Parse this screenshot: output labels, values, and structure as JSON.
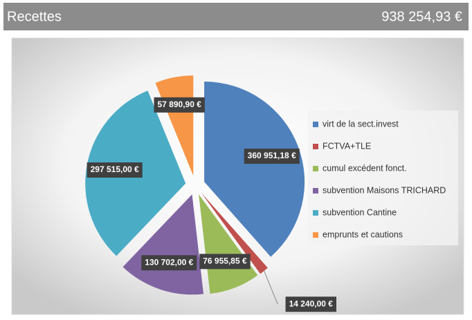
{
  "header": {
    "title": "Recettes",
    "total": "938 254,93 €"
  },
  "chart_data": {
    "type": "pie",
    "categories": [
      "virt de la sect.invest",
      "FCTVA+TLE",
      "cumul excédent fonct.",
      "subvention Maisons TRICHARD",
      "subvention Cantine",
      "emprunts et cautions"
    ],
    "values": [
      360951.18,
      14240,
      76955.85,
      130702,
      297515,
      57890.9
    ],
    "value_labels": [
      "360 951,18 €",
      "14 240,00 €",
      "76 955,85 €",
      "130 702,00 €",
      "297 515,00 €",
      "57 890,90 €"
    ],
    "colors": [
      "#4f81bd",
      "#c0504d",
      "#9bbb59",
      "#8064a2",
      "#4bacc6",
      "#f79646"
    ],
    "legend": "right"
  }
}
